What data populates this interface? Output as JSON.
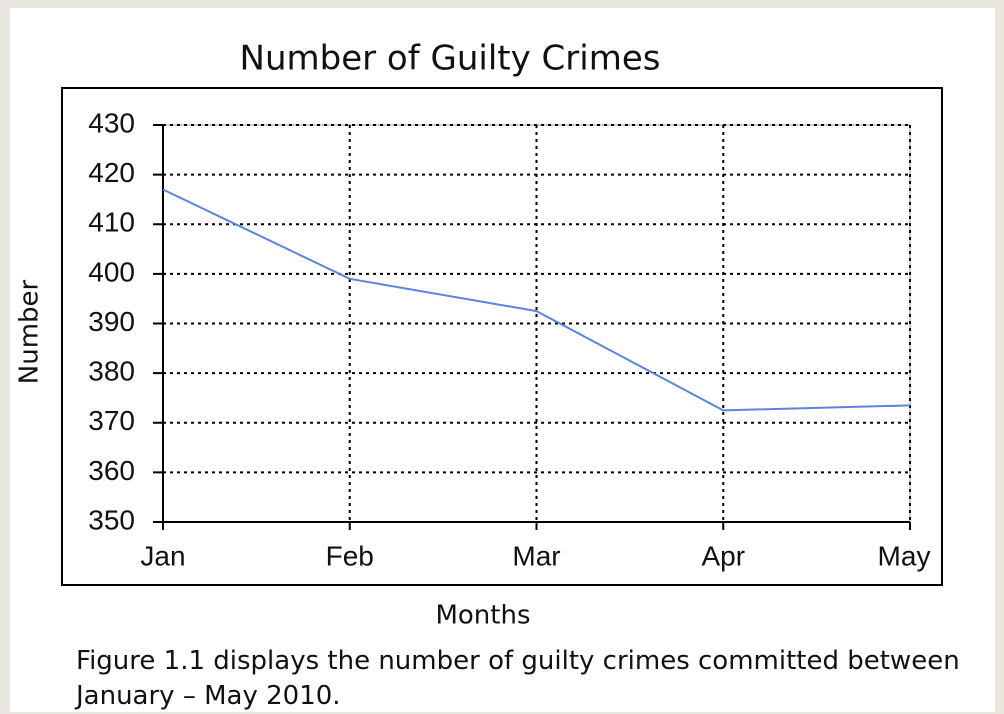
{
  "chart_data": {
    "type": "line",
    "title": "Number of Guilty Crimes",
    "x_label": "Months",
    "y_label": "Number",
    "caption": "Figure 1.1 displays the number of guilty crimes committed between January – May 2010.",
    "categories": [
      "Jan",
      "Feb",
      "Mar",
      "Apr",
      "May"
    ],
    "values": [
      417,
      399,
      392.5,
      372.5,
      373.5
    ],
    "color": "#5b84e0",
    "ylim": [
      350,
      430
    ],
    "yticks": [
      350,
      360,
      370,
      380,
      390,
      400,
      410,
      420,
      430
    ],
    "grid": true
  }
}
